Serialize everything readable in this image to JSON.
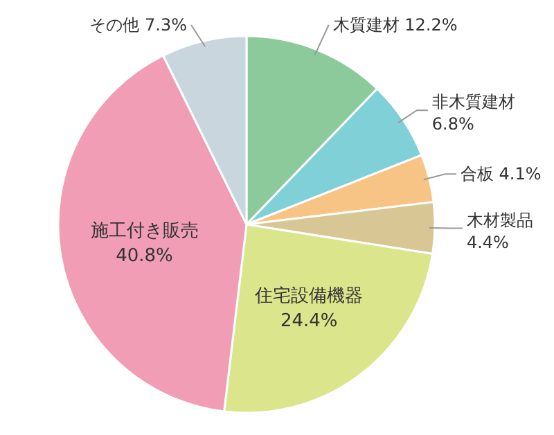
{
  "chart_data": {
    "type": "pie",
    "categories": [
      "木質建材",
      "非木質建材",
      "合板",
      "木材製品",
      "住宅設備機器",
      "施工付き販売",
      "その他"
    ],
    "values": [
      12.2,
      6.8,
      4.1,
      4.4,
      24.4,
      40.8,
      7.3
    ],
    "colors": [
      "#8dca9b",
      "#80d0d8",
      "#f8c485",
      "#d8c794",
      "#dbe58c",
      "#f09db5",
      "#c9d6de"
    ],
    "value_labels": [
      "12.2%",
      "6.8%",
      "4.1%",
      "4.4%",
      "24.4%",
      "40.8%",
      "7.3%"
    ]
  }
}
